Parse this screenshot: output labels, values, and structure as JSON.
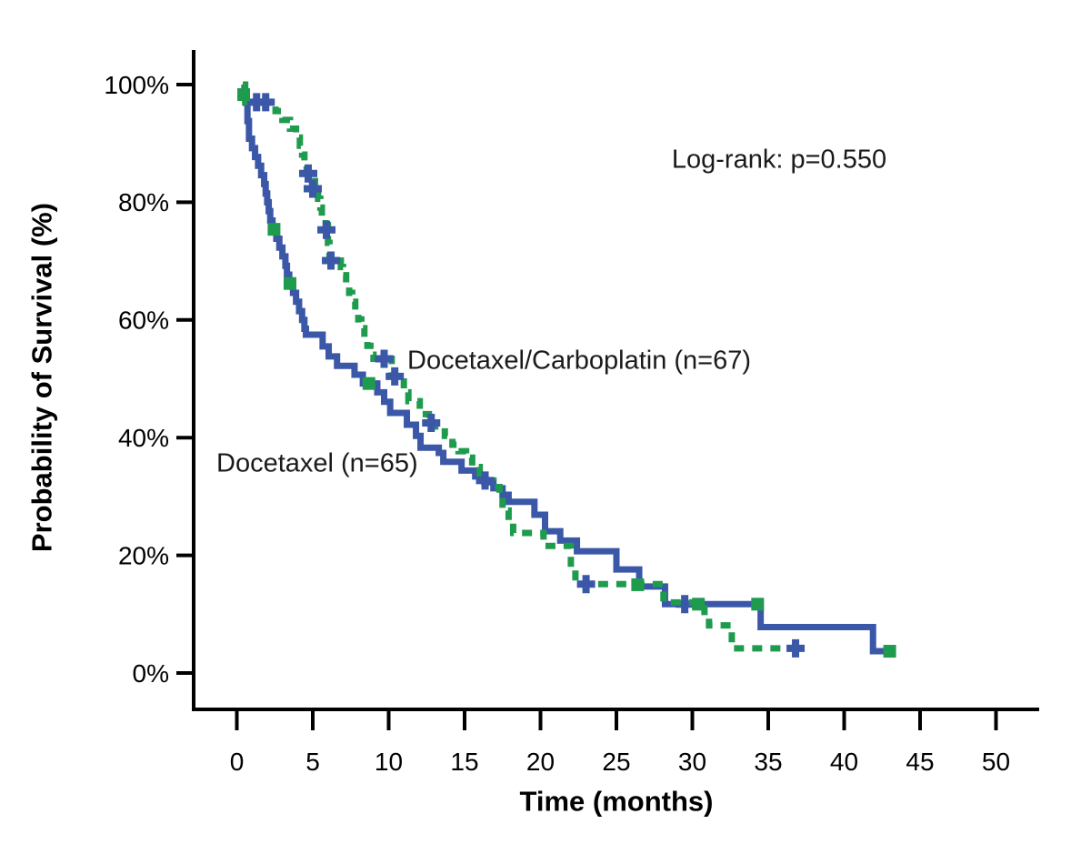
{
  "chart_data": {
    "type": "line",
    "subtype": "kaplan-meier-survival",
    "title": "",
    "xlabel": "Time (months)",
    "ylabel": "Probability of Survival (%)",
    "annotation": "Log-rank: p=0.550",
    "xlim": [
      0,
      50
    ],
    "ylim": [
      0,
      100
    ],
    "grid": false,
    "legend_position": "inline-labels",
    "x_axis": {
      "ticks": [
        0,
        5,
        10,
        15,
        20,
        25,
        30,
        35,
        40,
        45,
        50
      ],
      "tick_labels": [
        "0",
        "5",
        "10",
        "15",
        "20",
        "25",
        "30",
        "35",
        "40",
        "45",
        "50"
      ]
    },
    "y_axis": {
      "ticks": [
        0,
        20,
        40,
        60,
        80,
        100
      ],
      "tick_labels": [
        "0%",
        "20%",
        "40%",
        "60%",
        "80%",
        "100%"
      ]
    },
    "series": [
      {
        "id": "docetaxel",
        "name": "Docetaxel",
        "label": "Docetaxel (n=65)",
        "n": 65,
        "color": "#3A57A8",
        "line_style": "solid",
        "end_time": 43.1,
        "steps": [
          [
            0.4,
            100
          ],
          [
            0.5,
            98.5
          ],
          [
            0.6,
            96.9
          ],
          [
            0.7,
            93.8
          ],
          [
            0.8,
            90.8
          ],
          [
            1.0,
            89.2
          ],
          [
            1.2,
            87.7
          ],
          [
            1.4,
            86.2
          ],
          [
            1.6,
            84.6
          ],
          [
            1.8,
            83.1
          ],
          [
            1.9,
            81.5
          ],
          [
            2.0,
            80.0
          ],
          [
            2.1,
            78.5
          ],
          [
            2.2,
            76.9
          ],
          [
            2.35,
            75.4
          ],
          [
            2.6,
            73.8
          ],
          [
            2.8,
            72.3
          ],
          [
            3.0,
            70.8
          ],
          [
            3.2,
            69.2
          ],
          [
            3.3,
            67.7
          ],
          [
            3.45,
            66.2
          ],
          [
            3.7,
            64.6
          ],
          [
            3.9,
            63.1
          ],
          [
            4.1,
            61.5
          ],
          [
            4.3,
            60.0
          ],
          [
            4.45,
            58.5
          ],
          [
            4.55,
            57.5
          ],
          [
            5.65,
            55.5
          ],
          [
            6.05,
            53.8
          ],
          [
            6.6,
            52.2
          ],
          [
            7.75,
            50.7
          ],
          [
            8.3,
            49.2
          ],
          [
            9.25,
            47.7
          ],
          [
            9.7,
            46.1
          ],
          [
            10.1,
            44.2
          ],
          [
            11.2,
            42.2
          ],
          [
            11.8,
            40.3
          ],
          [
            12.1,
            38.3
          ],
          [
            13.3,
            37.4
          ],
          [
            13.6,
            35.9
          ],
          [
            14.8,
            34.4
          ],
          [
            15.7,
            33.4
          ],
          [
            16.3,
            32.4
          ],
          [
            16.9,
            31.4
          ],
          [
            17.5,
            30.3
          ],
          [
            17.9,
            29.1
          ],
          [
            19.6,
            26.9
          ],
          [
            20.3,
            24.1
          ],
          [
            21.3,
            22.5
          ],
          [
            22.4,
            20.7
          ],
          [
            25.0,
            17.6
          ],
          [
            26.5,
            14.7
          ],
          [
            28.2,
            11.7
          ],
          [
            34.5,
            7.8
          ],
          [
            41.9,
            3.7
          ]
        ],
        "censors_plus": [
          [
            29.5,
            11.7
          ]
        ],
        "censors_square": [
          [
            2.45,
            75.4
          ],
          [
            3.5,
            66.2
          ],
          [
            8.7,
            49.2
          ],
          [
            26.4,
            15.0
          ],
          [
            30.4,
            11.7
          ],
          [
            34.3,
            11.7
          ],
          [
            43.0,
            3.7
          ]
        ]
      },
      {
        "id": "docetaxel-carboplatin",
        "name": "Docetaxel/Carboplatin",
        "label": "Docetaxel/Carboplatin (n=67)",
        "n": 67,
        "color": "#1E9B4D",
        "line_style": "dashed",
        "end_time": 36.8,
        "steps": [
          [
            0.4,
            100
          ],
          [
            0.55,
            97.0
          ],
          [
            2.55,
            95.5
          ],
          [
            3.0,
            94.0
          ],
          [
            3.5,
            92.5
          ],
          [
            3.9,
            91.0
          ],
          [
            4.15,
            89.6
          ],
          [
            4.3,
            88.1
          ],
          [
            4.45,
            86.6
          ],
          [
            4.6,
            85.1
          ],
          [
            4.95,
            83.6
          ],
          [
            5.15,
            82.1
          ],
          [
            5.35,
            80.6
          ],
          [
            5.5,
            79.1
          ],
          [
            5.6,
            77.6
          ],
          [
            5.85,
            76.1
          ],
          [
            6.0,
            73.1
          ],
          [
            6.1,
            70.1
          ],
          [
            6.85,
            69.0
          ],
          [
            7.0,
            67.6
          ],
          [
            7.2,
            66.1
          ],
          [
            7.4,
            64.6
          ],
          [
            7.6,
            63.1
          ],
          [
            7.8,
            61.6
          ],
          [
            8.0,
            60.1
          ],
          [
            8.2,
            58.6
          ],
          [
            8.4,
            57.1
          ],
          [
            8.6,
            55.6
          ],
          [
            8.8,
            54.1
          ],
          [
            9.0,
            53.4
          ],
          [
            10.2,
            50.4
          ],
          [
            11.0,
            47.7
          ],
          [
            11.3,
            46.2
          ],
          [
            12.05,
            44.0
          ],
          [
            12.65,
            42.5
          ],
          [
            13.0,
            41.9
          ],
          [
            13.7,
            40.3
          ],
          [
            14.2,
            38.8
          ],
          [
            14.6,
            37.7
          ],
          [
            15.1,
            36.6
          ],
          [
            15.5,
            35.0
          ],
          [
            16.0,
            33.9
          ],
          [
            16.35,
            32.7
          ],
          [
            16.9,
            31.6
          ],
          [
            17.3,
            30.2
          ],
          [
            17.5,
            27.6
          ],
          [
            17.9,
            25.8
          ],
          [
            18.2,
            23.8
          ],
          [
            20.2,
            21.6
          ],
          [
            22.0,
            18.0
          ],
          [
            22.3,
            15.1
          ],
          [
            28.1,
            12.0
          ],
          [
            30.8,
            9.8
          ],
          [
            31.1,
            8.1
          ],
          [
            32.6,
            4.2
          ]
        ],
        "censors_plus": [
          [
            1.3,
            97.0
          ],
          [
            1.9,
            97.0
          ],
          [
            4.7,
            84.9
          ],
          [
            5.0,
            82.3
          ],
          [
            5.9,
            75.3
          ],
          [
            6.2,
            70.1
          ],
          [
            9.7,
            53.4
          ],
          [
            10.4,
            50.4
          ],
          [
            12.8,
            42.5
          ],
          [
            16.35,
            32.7
          ],
          [
            23.0,
            15.1
          ],
          [
            36.8,
            4.2
          ]
        ],
        "censors_square": [
          [
            0.45,
            98.3
          ]
        ]
      }
    ],
    "censor_plus_color": "#3A57A8",
    "censor_square_color": "#1E9B4D",
    "axis_color": "#000000"
  },
  "labels": {
    "ylabel": "Probability of Survival (%)",
    "xlabel": "Time (months)",
    "annotation": "Log-rank: p=0.550",
    "docetaxel": "Docetaxel (n=65)",
    "combo": "Docetaxel/Carboplatin (n=67)"
  }
}
